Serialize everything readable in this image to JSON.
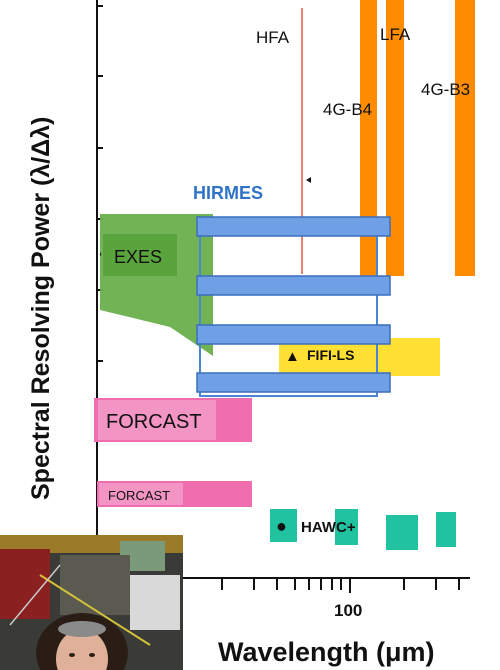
{
  "chart_data": {
    "type": "bar",
    "ylabel": "Spectral Resolving Power (λ/Δλ)",
    "xlabel": "Wavelength (μm)",
    "x_tick_label": "100",
    "x_scale": "log",
    "instruments": [
      {
        "name": "HFA",
        "color": "#e9836f"
      },
      {
        "name": "LFA",
        "color": "#ff8c00"
      },
      {
        "name": "4G-B4",
        "color": "#ff8c00"
      },
      {
        "name": "4G-B3",
        "color": "#ff8c00"
      },
      {
        "name": "HIRMES",
        "color": "#4a86d6"
      },
      {
        "name": "EXES",
        "color": "#6ab04c"
      },
      {
        "name": "FIFI-LS",
        "color": "#ffe033"
      },
      {
        "name": "FORCAST",
        "color": "#f06eb0"
      },
      {
        "name": "FORCAST",
        "color": "#f06eb0"
      },
      {
        "name": "HAWC+",
        "color": "#20c2a0"
      }
    ],
    "symbols": {
      "fifi": "▲",
      "hawc": "●"
    }
  },
  "colors": {
    "axis": "#111111",
    "orange": "#ff8c00",
    "hirmes": "#4a86d6",
    "exes": "#6ab04c",
    "fifi": "#ffe033",
    "forcast": "#f06eb0",
    "hawc": "#20c2a0",
    "hfa": "#e9836f"
  }
}
